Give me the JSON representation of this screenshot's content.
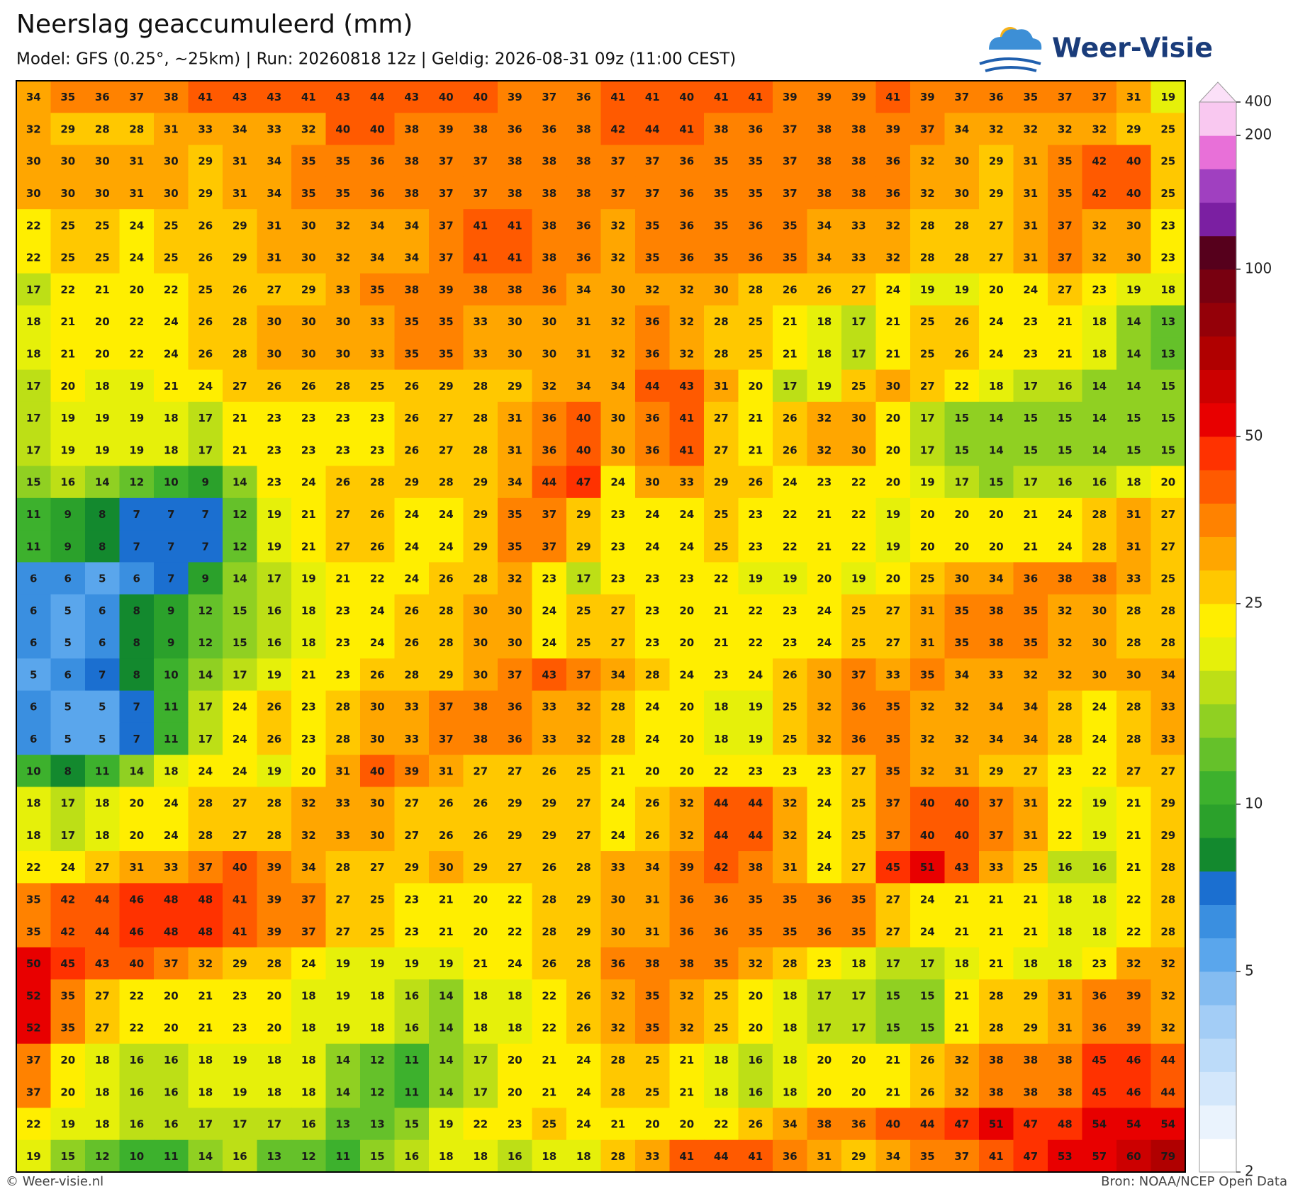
{
  "title": "Neerslag geaccumuleerd (mm)",
  "subtitle": "Model: GFS (0.25°, ~25km)  |  Run: 20260818 12z  |  Geldig: 2026-08-31 09z (11:00 CEST)",
  "logo": "Weer-Visie",
  "footer": {
    "left": "© Weer-visie.nl",
    "right": "Bron: NOAA/NCEP Open Data"
  },
  "map": {
    "values": [
      [
        34,
        35,
        36,
        37,
        38,
        41,
        43,
        43,
        41,
        43,
        44,
        43,
        40,
        40,
        39,
        37,
        36,
        41,
        41,
        40,
        41,
        41,
        39,
        39,
        39,
        41,
        39,
        37,
        36,
        35,
        37,
        37,
        31,
        19
      ],
      [
        32,
        29,
        28,
        28,
        31,
        33,
        34,
        33,
        32,
        40,
        40,
        38,
        39,
        38,
        36,
        36,
        38,
        42,
        44,
        41,
        38,
        36,
        37,
        38,
        38,
        39,
        37,
        34,
        32,
        32,
        32,
        32,
        29,
        25
      ],
      [
        30,
        30,
        30,
        31,
        30,
        29,
        31,
        34,
        35,
        35,
        36,
        38,
        37,
        37,
        38,
        38,
        38,
        37,
        37,
        36,
        35,
        35,
        37,
        38,
        38,
        36,
        32,
        30,
        29,
        31,
        35,
        42,
        40,
        25
      ],
      [
        30,
        30,
        30,
        31,
        30,
        29,
        31,
        34,
        35,
        35,
        36,
        38,
        37,
        37,
        38,
        38,
        38,
        37,
        37,
        36,
        35,
        35,
        37,
        38,
        38,
        36,
        32,
        30,
        29,
        31,
        35,
        42,
        40,
        25
      ],
      [
        22,
        25,
        25,
        24,
        25,
        26,
        29,
        31,
        30,
        32,
        34,
        34,
        37,
        41,
        41,
        38,
        36,
        32,
        35,
        36,
        35,
        36,
        35,
        34,
        33,
        32,
        28,
        28,
        27,
        31,
        37,
        32,
        30,
        23
      ],
      [
        22,
        25,
        25,
        24,
        25,
        26,
        29,
        31,
        30,
        32,
        34,
        34,
        37,
        41,
        41,
        38,
        36,
        32,
        35,
        36,
        35,
        36,
        35,
        34,
        33,
        32,
        28,
        28,
        27,
        31,
        37,
        32,
        30,
        23
      ],
      [
        17,
        22,
        21,
        20,
        22,
        25,
        26,
        27,
        29,
        33,
        35,
        38,
        39,
        38,
        38,
        36,
        34,
        30,
        32,
        32,
        30,
        28,
        26,
        26,
        27,
        24,
        19,
        19,
        20,
        24,
        27,
        23,
        19,
        18
      ],
      [
        18,
        21,
        20,
        22,
        24,
        26,
        28,
        30,
        30,
        30,
        33,
        35,
        35,
        33,
        30,
        30,
        31,
        32,
        36,
        32,
        28,
        25,
        21,
        18,
        17,
        21,
        25,
        26,
        24,
        23,
        21,
        18,
        14,
        13
      ],
      [
        18,
        21,
        20,
        22,
        24,
        26,
        28,
        30,
        30,
        30,
        33,
        35,
        35,
        33,
        30,
        30,
        31,
        32,
        36,
        32,
        28,
        25,
        21,
        18,
        17,
        21,
        25,
        26,
        24,
        23,
        21,
        18,
        14,
        13
      ],
      [
        17,
        20,
        18,
        19,
        21,
        24,
        27,
        26,
        26,
        28,
        25,
        26,
        29,
        28,
        29,
        32,
        34,
        34,
        44,
        43,
        31,
        20,
        17,
        19,
        25,
        30,
        27,
        22,
        18,
        17,
        16,
        14,
        14,
        15
      ],
      [
        17,
        19,
        19,
        19,
        18,
        17,
        21,
        23,
        23,
        23,
        23,
        26,
        27,
        28,
        31,
        36,
        40,
        30,
        36,
        41,
        27,
        21,
        26,
        32,
        30,
        20,
        17,
        15,
        14,
        15,
        15,
        14,
        15,
        15
      ],
      [
        17,
        19,
        19,
        19,
        18,
        17,
        21,
        23,
        23,
        23,
        23,
        26,
        27,
        28,
        31,
        36,
        40,
        30,
        36,
        41,
        27,
        21,
        26,
        32,
        30,
        20,
        17,
        15,
        14,
        15,
        15,
        14,
        15,
        15
      ],
      [
        15,
        16,
        14,
        12,
        10,
        9,
        14,
        23,
        24,
        26,
        28,
        29,
        28,
        29,
        34,
        44,
        47,
        24,
        30,
        33,
        29,
        26,
        24,
        23,
        22,
        20,
        19,
        17,
        15,
        17,
        16,
        16,
        18,
        20
      ],
      [
        11,
        9,
        8,
        7,
        7,
        7,
        12,
        19,
        21,
        27,
        26,
        24,
        24,
        29,
        35,
        37,
        29,
        23,
        24,
        24,
        25,
        23,
        22,
        21,
        22,
        19,
        20,
        20,
        20,
        21,
        24,
        28,
        31,
        27
      ],
      [
        11,
        9,
        8,
        7,
        7,
        7,
        12,
        19,
        21,
        27,
        26,
        24,
        24,
        29,
        35,
        37,
        29,
        23,
        24,
        24,
        25,
        23,
        22,
        21,
        22,
        19,
        20,
        20,
        20,
        21,
        24,
        28,
        31,
        27
      ],
      [
        6,
        6,
        5,
        6,
        7,
        9,
        14,
        17,
        19,
        21,
        22,
        24,
        26,
        28,
        32,
        23,
        17,
        23,
        23,
        23,
        22,
        19,
        19,
        20,
        19,
        20,
        25,
        30,
        34,
        36,
        38,
        38,
        33,
        25
      ],
      [
        6,
        5,
        6,
        8,
        9,
        12,
        15,
        16,
        18,
        23,
        24,
        26,
        28,
        30,
        30,
        24,
        25,
        27,
        23,
        20,
        21,
        22,
        23,
        24,
        25,
        27,
        31,
        35,
        38,
        35,
        32,
        30,
        28,
        28
      ],
      [
        6,
        5,
        6,
        8,
        9,
        12,
        15,
        16,
        18,
        23,
        24,
        26,
        28,
        30,
        30,
        24,
        25,
        27,
        23,
        20,
        21,
        22,
        23,
        24,
        25,
        27,
        31,
        35,
        38,
        35,
        32,
        30,
        28,
        28
      ],
      [
        5,
        6,
        7,
        8,
        10,
        14,
        17,
        19,
        21,
        23,
        26,
        28,
        29,
        30,
        37,
        43,
        37,
        34,
        28,
        24,
        23,
        24,
        26,
        30,
        37,
        33,
        35,
        34,
        33,
        32,
        32,
        30,
        30,
        34
      ],
      [
        6,
        5,
        5,
        7,
        11,
        17,
        24,
        26,
        23,
        28,
        30,
        33,
        37,
        38,
        36,
        33,
        32,
        28,
        24,
        20,
        18,
        19,
        25,
        32,
        36,
        35,
        32,
        32,
        34,
        34,
        28,
        24,
        28,
        33
      ],
      [
        6,
        5,
        5,
        7,
        11,
        17,
        24,
        26,
        23,
        28,
        30,
        33,
        37,
        38,
        36,
        33,
        32,
        28,
        24,
        20,
        18,
        19,
        25,
        32,
        36,
        35,
        32,
        32,
        34,
        34,
        28,
        24,
        28,
        33
      ],
      [
        10,
        8,
        11,
        14,
        18,
        24,
        24,
        19,
        20,
        31,
        40,
        39,
        31,
        27,
        27,
        26,
        25,
        21,
        20,
        20,
        22,
        23,
        23,
        23,
        27,
        35,
        32,
        31,
        29,
        27,
        23,
        22,
        27,
        27
      ],
      [
        18,
        17,
        18,
        20,
        24,
        28,
        27,
        28,
        32,
        33,
        30,
        27,
        26,
        26,
        29,
        29,
        27,
        24,
        26,
        32,
        44,
        44,
        32,
        24,
        25,
        37,
        40,
        40,
        37,
        31,
        22,
        19,
        21,
        29
      ],
      [
        18,
        17,
        18,
        20,
        24,
        28,
        27,
        28,
        32,
        33,
        30,
        27,
        26,
        26,
        29,
        29,
        27,
        24,
        26,
        32,
        44,
        44,
        32,
        24,
        25,
        37,
        40,
        40,
        37,
        31,
        22,
        19,
        21,
        29
      ],
      [
        22,
        24,
        27,
        31,
        33,
        37,
        40,
        39,
        34,
        28,
        27,
        29,
        30,
        29,
        27,
        26,
        28,
        33,
        34,
        39,
        42,
        38,
        31,
        24,
        27,
        45,
        51,
        43,
        33,
        25,
        16,
        16,
        21,
        28
      ],
      [
        35,
        42,
        44,
        46,
        48,
        48,
        41,
        39,
        37,
        27,
        25,
        23,
        21,
        20,
        22,
        28,
        29,
        30,
        31,
        36,
        36,
        35,
        35,
        36,
        35,
        27,
        24,
        21,
        21,
        21,
        18,
        18,
        22,
        28
      ],
      [
        35,
        42,
        44,
        46,
        48,
        48,
        41,
        39,
        37,
        27,
        25,
        23,
        21,
        20,
        22,
        28,
        29,
        30,
        31,
        36,
        36,
        35,
        35,
        36,
        35,
        27,
        24,
        21,
        21,
        21,
        18,
        18,
        22,
        28
      ],
      [
        50,
        45,
        43,
        40,
        37,
        32,
        29,
        28,
        24,
        19,
        19,
        19,
        19,
        21,
        24,
        26,
        28,
        36,
        38,
        38,
        35,
        32,
        28,
        23,
        18,
        17,
        17,
        18,
        21,
        18,
        18,
        23,
        32,
        32
      ],
      [
        52,
        35,
        27,
        22,
        20,
        21,
        23,
        20,
        18,
        19,
        18,
        16,
        14,
        18,
        18,
        22,
        26,
        32,
        35,
        32,
        25,
        20,
        18,
        17,
        17,
        15,
        15,
        21,
        28,
        29,
        31,
        36,
        39,
        32
      ],
      [
        52,
        35,
        27,
        22,
        20,
        21,
        23,
        20,
        18,
        19,
        18,
        16,
        14,
        18,
        18,
        22,
        26,
        32,
        35,
        32,
        25,
        20,
        18,
        17,
        17,
        15,
        15,
        21,
        28,
        29,
        31,
        36,
        39,
        32
      ],
      [
        37,
        20,
        18,
        16,
        16,
        18,
        19,
        18,
        18,
        14,
        12,
        11,
        14,
        17,
        20,
        21,
        24,
        28,
        25,
        21,
        18,
        16,
        18,
        20,
        20,
        21,
        26,
        32,
        38,
        38,
        38,
        45,
        46,
        44
      ],
      [
        37,
        20,
        18,
        16,
        16,
        18,
        19,
        18,
        18,
        14,
        12,
        11,
        14,
        17,
        20,
        21,
        24,
        28,
        25,
        21,
        18,
        16,
        18,
        20,
        20,
        21,
        26,
        32,
        38,
        38,
        38,
        45,
        46,
        44
      ],
      [
        22,
        19,
        18,
        16,
        16,
        17,
        17,
        17,
        16,
        13,
        13,
        15,
        19,
        22,
        23,
        25,
        24,
        21,
        20,
        20,
        22,
        26,
        34,
        38,
        36,
        40,
        44,
        47,
        51,
        47,
        48,
        54,
        54,
        54
      ],
      [
        19,
        15,
        12,
        10,
        11,
        14,
        16,
        13,
        12,
        11,
        15,
        16,
        18,
        18,
        16,
        18,
        18,
        28,
        33,
        41,
        44,
        41,
        36,
        31,
        29,
        34,
        35,
        37,
        41,
        47,
        53,
        57,
        60,
        79
      ]
    ]
  },
  "colorbar": {
    "levels": [
      2,
      2.5,
      3,
      3.5,
      4,
      4.5,
      5,
      6,
      7,
      8,
      9,
      10,
      12,
      14,
      16,
      18,
      20,
      25,
      30,
      35,
      40,
      45,
      50,
      60,
      70,
      80,
      90,
      100,
      125,
      150,
      175,
      200,
      400
    ],
    "colors": [
      "#ffffff",
      "#eaf3fd",
      "#d3e7fb",
      "#bcdbf9",
      "#a3cdf6",
      "#84bcf1",
      "#5aa6ec",
      "#3a8fe0",
      "#1b6fd0",
      "#13892e",
      "#2ba12b",
      "#3db12d",
      "#65c12a",
      "#90d022",
      "#bddf16",
      "#e6f00a",
      "#ffee00",
      "#ffc800",
      "#ffa600",
      "#ff8200",
      "#ff5a00",
      "#ff3200",
      "#e80000",
      "#cc0000",
      "#b00000",
      "#940008",
      "#780010",
      "#56001c",
      "#7b1fa2",
      "#a040c0",
      "#e870d8",
      "#f9c8f0"
    ],
    "over_color": "#fbe0f8",
    "ticks": [
      2,
      5,
      10,
      25,
      50,
      100,
      200,
      400
    ]
  }
}
